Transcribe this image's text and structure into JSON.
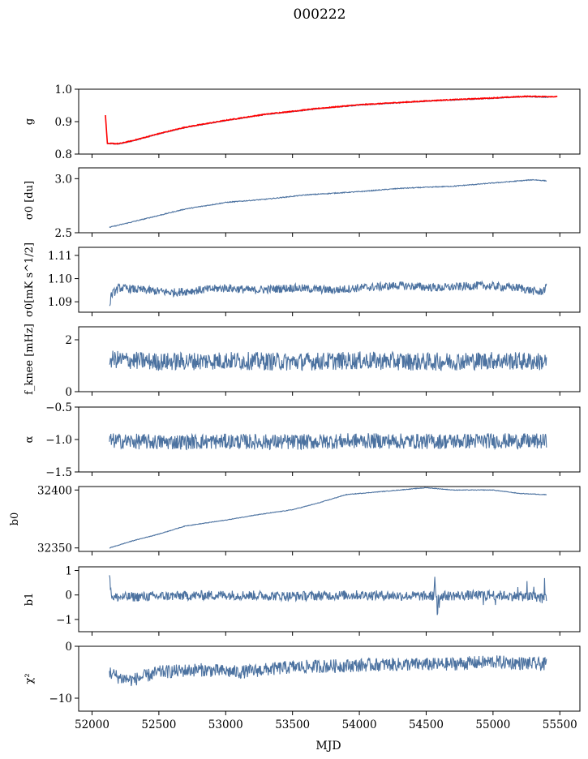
{
  "figure": {
    "title": "000222",
    "xlabel": "MJD"
  },
  "chart_data": [
    {
      "type": "line",
      "ylabel": "g",
      "xlim": [
        51900,
        55650
      ],
      "ylim": [
        0.8,
        1.0
      ],
      "yticks": [
        "0.8",
        "0.9",
        "1.0"
      ],
      "series": [
        {
          "color": "#4c72a0",
          "x": [
            52115,
            52200,
            52300,
            52500,
            52700,
            53000,
            53300,
            53700,
            54000,
            54300,
            54600,
            55000,
            55250,
            55420
          ],
          "y": [
            0.832,
            0.831,
            0.84,
            0.862,
            0.882,
            0.903,
            0.922,
            0.94,
            0.951,
            0.958,
            0.965,
            0.972,
            0.977,
            0.975
          ]
        },
        {
          "color": "#ff0000",
          "x": [
            52100,
            52115,
            52200,
            52300,
            52500,
            52700,
            53000,
            53300,
            53700,
            54000,
            54300,
            54600,
            55000,
            55250,
            55480
          ],
          "y": [
            0.92,
            0.833,
            0.832,
            0.841,
            0.863,
            0.883,
            0.904,
            0.923,
            0.941,
            0.952,
            0.959,
            0.966,
            0.973,
            0.978,
            0.977
          ]
        }
      ]
    },
    {
      "type": "line",
      "ylabel": "σ0 [du]",
      "xlim": [
        51900,
        55650
      ],
      "ylim": [
        2.5,
        3.1
      ],
      "yticks": [
        "2.5",
        "3.0"
      ],
      "series": [
        {
          "color": "#4c72a0",
          "x": [
            52130,
            52300,
            52500,
            52700,
            53000,
            53300,
            53600,
            54000,
            54300,
            54700,
            55000,
            55300,
            55400
          ],
          "y": [
            2.55,
            2.6,
            2.66,
            2.72,
            2.78,
            2.81,
            2.85,
            2.88,
            2.91,
            2.93,
            2.96,
            2.99,
            2.98
          ]
        }
      ]
    },
    {
      "type": "line",
      "ylabel": "σ0[mK s^1/2]",
      "xlim": [
        51900,
        55650
      ],
      "ylim": [
        1.0855,
        1.1135
      ],
      "yticks": [
        "1.09",
        "1.10",
        "1.11"
      ],
      "series": [
        {
          "color": "#4c72a0",
          "x": [
            52130,
            52145,
            52200,
            52400,
            52600,
            52800,
            53000,
            53200,
            53500,
            53800,
            54000,
            54300,
            54600,
            54900,
            55200,
            55350,
            55400
          ],
          "y": [
            1.088,
            1.093,
            1.096,
            1.095,
            1.094,
            1.095,
            1.096,
            1.095,
            1.096,
            1.095,
            1.096,
            1.097,
            1.096,
            1.097,
            1.096,
            1.094,
            1.096
          ]
        }
      ]
    },
    {
      "type": "line",
      "ylabel": "f_knee [mHz]",
      "xlim": [
        51900,
        55650
      ],
      "ylim": [
        0,
        2.5
      ],
      "yticks": [
        "0",
        "2"
      ],
      "series": [
        {
          "color": "#4c72a0",
          "x": [
            52130,
            52500,
            53000,
            53500,
            54000,
            54500,
            55000,
            55400
          ],
          "y": [
            1.25,
            1.15,
            1.2,
            1.15,
            1.2,
            1.15,
            1.2,
            1.15
          ]
        }
      ]
    },
    {
      "type": "line",
      "ylabel": "α",
      "xlim": [
        51900,
        55650
      ],
      "ylim": [
        -1.5,
        -0.5
      ],
      "yticks": [
        "−1.5",
        "−1.0",
        "−0.5"
      ],
      "series": [
        {
          "color": "#4c72a0",
          "x": [
            52130,
            52500,
            53000,
            53500,
            54000,
            54500,
            55000,
            55400
          ],
          "y": [
            -1.02,
            -1.04,
            -1.03,
            -1.04,
            -1.02,
            -1.03,
            -1.02,
            -1.03
          ]
        }
      ]
    },
    {
      "type": "line",
      "ylabel": "b0",
      "xlim": [
        51900,
        55650
      ],
      "ylim": [
        32347,
        32403
      ],
      "yticks": [
        "32350",
        "32400"
      ],
      "series": [
        {
          "color": "#4c72a0",
          "x": [
            52130,
            52300,
            52500,
            52700,
            53000,
            53200,
            53500,
            53700,
            53900,
            54100,
            54400,
            54500,
            54700,
            55000,
            55200,
            55400
          ],
          "y": [
            32350,
            32356,
            32362,
            32369,
            32374,
            32378,
            32383,
            32389,
            32396,
            32398,
            32401,
            32402,
            32400,
            32400,
            32397,
            32396
          ]
        }
      ]
    },
    {
      "type": "line",
      "ylabel": "b1",
      "xlim": [
        51900,
        55650
      ],
      "ylim": [
        -1.5,
        1.15
      ],
      "yticks": [
        "−1",
        "0",
        "1"
      ],
      "series": [
        {
          "color": "#4c72a0",
          "x": [
            52130,
            52140,
            52160,
            52500,
            53000,
            53500,
            54000,
            54500,
            55000,
            55400
          ],
          "y": [
            1.0,
            0.1,
            -0.1,
            -0.05,
            0.0,
            -0.05,
            0.0,
            -0.05,
            0.0,
            -0.1
          ]
        }
      ]
    },
    {
      "type": "line",
      "ylabel": "χ²",
      "xlim": [
        51900,
        55650
      ],
      "ylim": [
        -12.5,
        0
      ],
      "yticks": [
        "−10",
        "0"
      ],
      "series": [
        {
          "color": "#4c72a0",
          "x": [
            52130,
            52200,
            52300,
            52500,
            52800,
            53100,
            53500,
            53800,
            54200,
            54600,
            55000,
            55400
          ],
          "y": [
            -5.0,
            -6.0,
            -6.5,
            -5.0,
            -4.5,
            -5.0,
            -4.0,
            -3.8,
            -3.5,
            -3.5,
            -3.0,
            -3.5
          ]
        }
      ]
    }
  ]
}
